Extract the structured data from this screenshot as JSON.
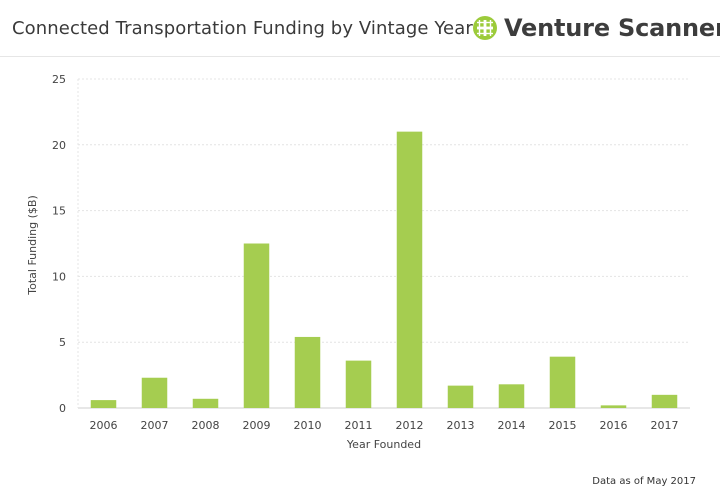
{
  "header": {
    "title": "Connected Transportation Funding by Vintage Year",
    "logo_text": "Venture Scanner",
    "logo_icon": "venture-scanner-grid-icon"
  },
  "footer": {
    "note": "Data as of May 2017"
  },
  "colors": {
    "bar": "#a5cd50",
    "logo_green": "#9ccb3b",
    "grid": "#e4e4e4"
  },
  "chart_data": {
    "type": "bar",
    "title": "Connected Transportation Funding by Vintage Year",
    "xlabel": "Year Founded",
    "ylabel": "Total Funding ($B)",
    "categories": [
      "2006",
      "2007",
      "2008",
      "2009",
      "2010",
      "2011",
      "2012",
      "2013",
      "2014",
      "2015",
      "2016",
      "2017"
    ],
    "values": [
      0.6,
      2.3,
      0.7,
      12.5,
      5.4,
      3.6,
      21.0,
      1.7,
      1.8,
      3.9,
      0.2,
      1.0
    ],
    "ylim": [
      0,
      25
    ],
    "yticks": [
      "0",
      "5",
      "10",
      "15",
      "20",
      "25"
    ],
    "grid": true,
    "legend": "none"
  }
}
